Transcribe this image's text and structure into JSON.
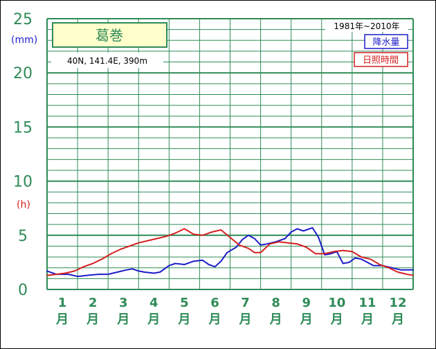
{
  "chart_data": {
    "type": "line",
    "title": "葛巻",
    "location": "40N,  141.4E,  390m",
    "period": "1981年~2010年",
    "units": {
      "precip": "(mm)",
      "sun": "(h)"
    },
    "ylim": [
      0,
      25
    ],
    "yticks": [
      "0",
      "5",
      "10",
      "15",
      "20",
      "25"
    ],
    "months": [
      "1",
      "2",
      "3",
      "4",
      "5",
      "6",
      "7",
      "8",
      "9",
      "10",
      "11",
      "12"
    ],
    "month_suffix": "月",
    "grid": true,
    "legend_position": "top-right",
    "series": [
      {
        "name": "降水量",
        "color": "#1c1cc8",
        "x": [
          0.0,
          0.3,
          0.7,
          1.0,
          1.3,
          1.7,
          2.0,
          2.3,
          2.6,
          2.8,
          3.0,
          3.2,
          3.5,
          3.7,
          4.0,
          4.2,
          4.5,
          4.8,
          5.1,
          5.3,
          5.5,
          5.7,
          5.9,
          6.2,
          6.4,
          6.6,
          6.8,
          7.0,
          7.2,
          7.5,
          7.8,
          8.0,
          8.2,
          8.4,
          8.5,
          8.7,
          8.9,
          9.1,
          9.3,
          9.5,
          9.7,
          9.9,
          10.1,
          10.3,
          10.5,
          10.7,
          11.0,
          11.3,
          11.6,
          12.0
        ],
        "y": [
          1.7,
          1.4,
          1.4,
          1.2,
          1.3,
          1.4,
          1.4,
          1.6,
          1.8,
          1.9,
          1.7,
          1.6,
          1.5,
          1.6,
          2.2,
          2.4,
          2.3,
          2.6,
          2.7,
          2.3,
          2.1,
          2.6,
          3.4,
          3.9,
          4.6,
          5.0,
          4.7,
          4.1,
          4.2,
          4.4,
          4.7,
          5.3,
          5.6,
          5.4,
          5.5,
          5.7,
          4.8,
          3.2,
          3.3,
          3.5,
          2.4,
          2.5,
          2.9,
          2.8,
          2.5,
          2.2,
          2.2,
          2.0,
          1.8,
          1.8
        ]
      },
      {
        "name": "日照時間",
        "color": "#d42020",
        "x": [
          0.0,
          0.3,
          0.6,
          0.9,
          1.2,
          1.5,
          1.8,
          2.1,
          2.4,
          2.7,
          3.0,
          3.3,
          3.6,
          3.9,
          4.2,
          4.5,
          4.8,
          5.1,
          5.4,
          5.7,
          6.0,
          6.3,
          6.6,
          6.8,
          7.0,
          7.3,
          7.6,
          7.9,
          8.2,
          8.5,
          8.8,
          9.1,
          9.4,
          9.7,
          10.0,
          10.3,
          10.6,
          10.9,
          11.2,
          11.5,
          11.8,
          12.0
        ],
        "y": [
          1.3,
          1.4,
          1.5,
          1.7,
          2.1,
          2.4,
          2.8,
          3.3,
          3.7,
          4.0,
          4.3,
          4.5,
          4.7,
          4.9,
          5.2,
          5.6,
          5.1,
          5.0,
          5.3,
          5.5,
          4.8,
          4.1,
          3.8,
          3.4,
          3.4,
          4.2,
          4.4,
          4.3,
          4.2,
          3.9,
          3.3,
          3.3,
          3.5,
          3.6,
          3.5,
          3.0,
          2.8,
          2.3,
          2.0,
          1.6,
          1.4,
          1.3
        ]
      }
    ]
  }
}
